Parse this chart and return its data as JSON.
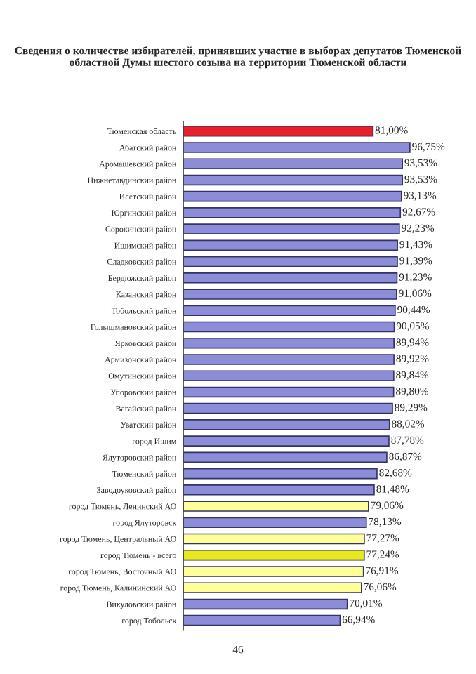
{
  "chart_data": {
    "type": "bar",
    "orientation": "horizontal",
    "title": "Сведения о количестве избирателей, принявших участие в выборах депутатов Тюменской областной Думы шестого созыва на территории Тюменской области",
    "categories": [
      "Тюменская область",
      "Абатский район",
      "Аромашевский район",
      "Нижнетавдинский район",
      "Исетский район",
      "Юргинский район",
      "Сорокинский район",
      "Ишимский район",
      "Сладковский район",
      "Бердюжский район",
      "Казанский район",
      "Тобольский район",
      "Голышмановский район",
      "Ярковский район",
      "Армизонский район",
      "Омутинский район",
      "Упоровский район",
      "Вагайский район",
      "Уватский район",
      "город Ишим",
      "Ялуторовский район",
      "Тюменский район",
      "Заводоуковский район",
      "город Тюмень, Ленинский АО",
      "город Ялуторовск",
      "город Тюмень, Центральный АО",
      "город Тюмень - всего",
      "город Тюмень, Восточный АО",
      "город Тюмень, Калининский АО",
      "Викуловский район",
      "город Тобольск"
    ],
    "values": [
      81.0,
      96.75,
      93.53,
      93.53,
      93.13,
      92.67,
      92.23,
      91.43,
      91.39,
      91.23,
      91.06,
      90.44,
      90.05,
      89.94,
      89.92,
      89.84,
      89.8,
      89.29,
      88.02,
      87.78,
      86.87,
      82.68,
      81.48,
      79.06,
      78.13,
      77.27,
      77.24,
      76.91,
      76.06,
      70.01,
      66.94
    ],
    "value_labels": [
      "81,00%",
      "96,75%",
      "93,53%",
      "93,53%",
      "93,13%",
      "92,67%",
      "92,23%",
      "91,43%",
      "91,39%",
      "91,23%",
      "91,06%",
      "90,44%",
      "90,05%",
      "89,94%",
      "89,92%",
      "89,84%",
      "89,80%",
      "89,29%",
      "88,02%",
      "87,78%",
      "86,87%",
      "82,68%",
      "81,48%",
      "79,06%",
      "78,13%",
      "77,27%",
      "77,24%",
      "76,91%",
      "76,06%",
      "70,01%",
      "66,94%"
    ],
    "colors": [
      "#e8202a",
      "#8c8cd8",
      "#8c8cd8",
      "#8c8cd8",
      "#8c8cd8",
      "#8c8cd8",
      "#8c8cd8",
      "#8c8cd8",
      "#8c8cd8",
      "#8c8cd8",
      "#8c8cd8",
      "#8c8cd8",
      "#8c8cd8",
      "#8c8cd8",
      "#8c8cd8",
      "#8c8cd8",
      "#8c8cd8",
      "#8c8cd8",
      "#8c8cd8",
      "#8c8cd8",
      "#8c8cd8",
      "#8c8cd8",
      "#8c8cd8",
      "#ffff99",
      "#8c8cd8",
      "#ffff99",
      "#e8e820",
      "#ffff99",
      "#ffff99",
      "#8c8cd8",
      "#8c8cd8"
    ],
    "annotations": [
      "46"
    ]
  }
}
